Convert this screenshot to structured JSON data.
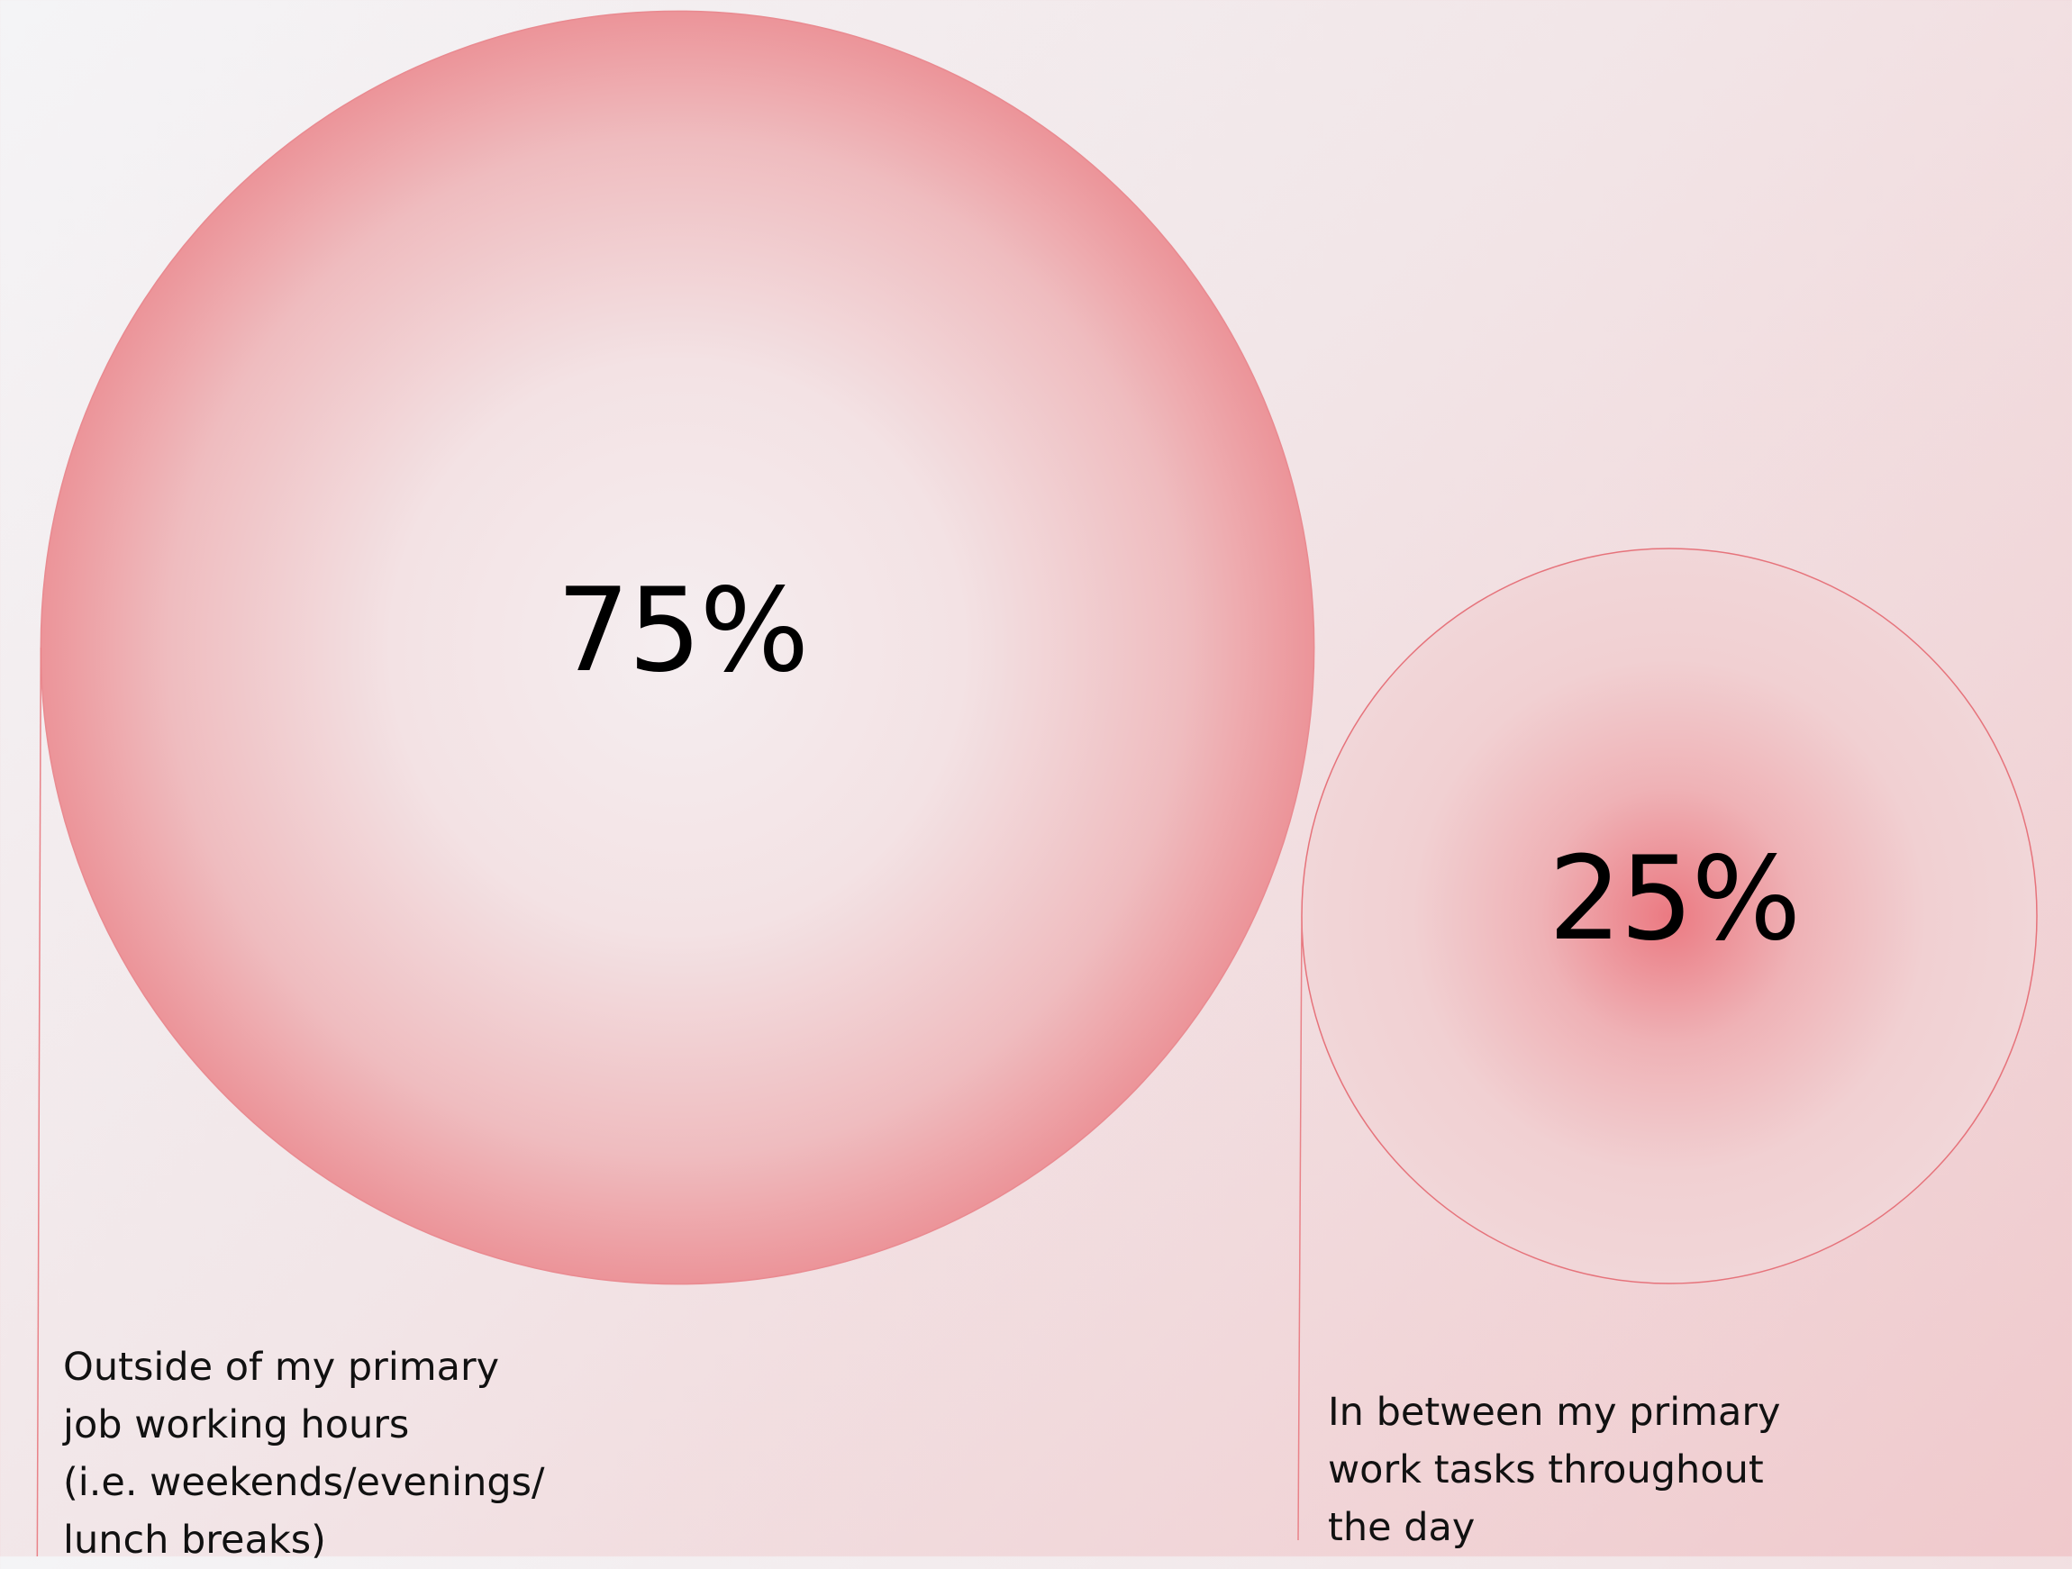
{
  "chart_data": {
    "type": "bubble",
    "categories": [
      "Outside of my primary\njob working hours\n(i.e. weekends/evenings/\nlunch breaks)",
      "In between my primary\nwork tasks throughout\nthe day"
    ],
    "values": [
      75,
      25
    ],
    "value_labels": [
      "75%",
      "25%"
    ]
  }
}
